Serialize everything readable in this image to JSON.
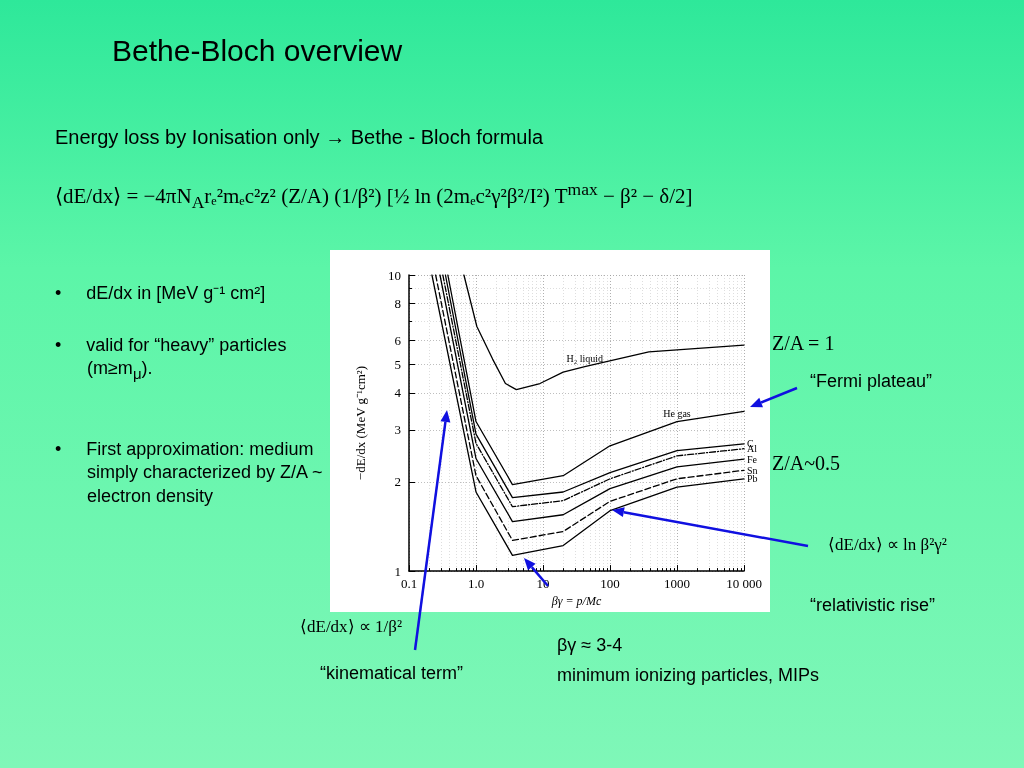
{
  "chart_data": {
    "type": "line",
    "title": "Bethe-Bloch overview",
    "subtitle": "Energy loss by Ionisation only → Bethe - Bloch formula",
    "xlabel": "βγ = p/Mc",
    "ylabel": "−dE/dx (MeV g⁻¹cm²)",
    "log": "xy",
    "xlim": [
      0.1,
      10000
    ],
    "ylim": [
      1,
      10
    ],
    "xticks": [
      0.1,
      {
        "value": 1,
        "label": "1.0"
      },
      10,
      100,
      1000,
      {
        "value": 10000,
        "label": "10 000"
      }
    ],
    "yticks": [
      1,
      2,
      3,
      4,
      5,
      6,
      8,
      10
    ],
    "grid": true,
    "marker": "none",
    "series": [
      {
        "name": "H₂ liquid",
        "color": "#000000",
        "line_style": "solid",
        "x": [
          0.66,
          1.03,
          1.77,
          2.75,
          4,
          9,
          20,
          42,
          380,
          10000
        ],
        "values": [
          10,
          6.7,
          5.2,
          4.3,
          4.1,
          4.3,
          4.7,
          4.9,
          5.5,
          5.8
        ]
      },
      {
        "name": "He gas",
        "color": "#000000",
        "line_style": "solid",
        "x": [
          0.38,
          1,
          3.5,
          20,
          100,
          1000,
          10000
        ],
        "values": [
          10,
          3.2,
          1.96,
          2.1,
          2.65,
          3.2,
          3.46
        ]
      },
      {
        "name": "C",
        "color": "#000000",
        "line_style": "solid",
        "x": [
          0.35,
          1,
          3.5,
          20,
          100,
          1000,
          10000
        ],
        "values": [
          10,
          2.9,
          1.77,
          1.85,
          2.15,
          2.55,
          2.69
        ]
      },
      {
        "name": "Al",
        "color": "#000000",
        "line_style": "dotted",
        "x": [
          0.32,
          1,
          3.5,
          20,
          100,
          1000,
          10000
        ],
        "values": [
          10,
          2.7,
          1.65,
          1.73,
          2.05,
          2.45,
          2.59
        ]
      },
      {
        "name": "Fe",
        "color": "#000000",
        "line_style": "solid",
        "x": [
          0.29,
          1,
          3.5,
          20,
          100,
          1000,
          10000
        ],
        "values": [
          10,
          2.4,
          1.47,
          1.55,
          1.9,
          2.25,
          2.39
        ]
      },
      {
        "name": "Sn",
        "color": "#000000",
        "line_style": "dashed",
        "x": [
          0.25,
          1,
          3.5,
          20,
          100,
          1000,
          10000
        ],
        "values": [
          10,
          2.1,
          1.27,
          1.36,
          1.72,
          2.05,
          2.19
        ]
      },
      {
        "name": "Pb",
        "color": "#000000",
        "line_style": "solid",
        "x": [
          0.22,
          1,
          3.5,
          20,
          100,
          1000,
          10000
        ],
        "values": [
          10,
          1.85,
          1.13,
          1.22,
          1.6,
          1.92,
          2.05
        ]
      }
    ],
    "annotations": [
      "⟨dE/dx⟩ = −4πN$_{A}$rₑ²mₑc²z² (Z/A) (1/β²) [½ ln (2mₑc²γ²β²/I²) T$^{max}$ − β² − δ/2]",
      "•     dE/dx in [MeV g⁻¹ cm²]",
      "•     valid for “heavy” particles (m≥m$_{μ}$).",
      "•     First approximation: medium simply characterized by Z/A ~ electron density",
      "Z/A = 1",
      "“Fermi plateau”",
      "Z/A~0.5",
      "⟨dE/dx⟩ ∝ ln β²γ²",
      "“relativistic rise”",
      "⟨dE/dx⟩ ∝ 1/β²",
      "“kinematical term”",
      "βγ ≈ 3-4",
      "minimum ionizing particles, MIPs"
    ]
  }
}
